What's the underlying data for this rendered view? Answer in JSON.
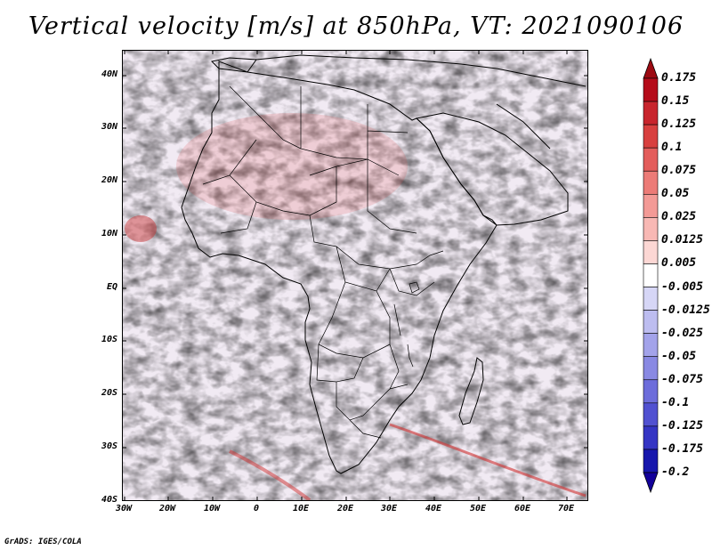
{
  "title": "Vertical velocity [m/s] at 850hPa, VT: 2021090106",
  "credit": "GrADS: IGES/COLA",
  "map": {
    "region": "Africa",
    "lat_labels": [
      "40N",
      "30N",
      "20N",
      "10N",
      "EQ",
      "10S",
      "20S",
      "30S",
      "40S"
    ],
    "lon_labels": [
      "30W",
      "20W",
      "10W",
      "0",
      "10E",
      "20E",
      "30E",
      "40E",
      "50E",
      "60E",
      "70E"
    ],
    "land_outline_color": "#000000",
    "field_colors": {
      "upward": "#d23c3c",
      "downward": "#5b5bd6",
      "neutral": "#ffffff"
    }
  },
  "colorbar": {
    "labels": [
      "0.175",
      "0.15",
      "0.125",
      "0.1",
      "0.075",
      "0.05",
      "0.025",
      "0.0125",
      "0.005",
      "-0.005",
      "-0.0125",
      "-0.025",
      "-0.05",
      "-0.075",
      "-0.1",
      "-0.125",
      "-0.175",
      "-0.2"
    ],
    "colors": [
      "#b50c1a",
      "#c8252d",
      "#d8403f",
      "#e35d5b",
      "#ec7b77",
      "#f39a96",
      "#f8b8b4",
      "#fcd7d4",
      "#ffffff",
      "#d6d6f6",
      "#bdbdf0",
      "#a3a3ea",
      "#8989e3",
      "#6d6ddb",
      "#5151d1",
      "#3535c4",
      "#1717ad"
    ],
    "top_arrow_color": "#9c0a12",
    "bottom_arrow_color": "#12009a"
  }
}
